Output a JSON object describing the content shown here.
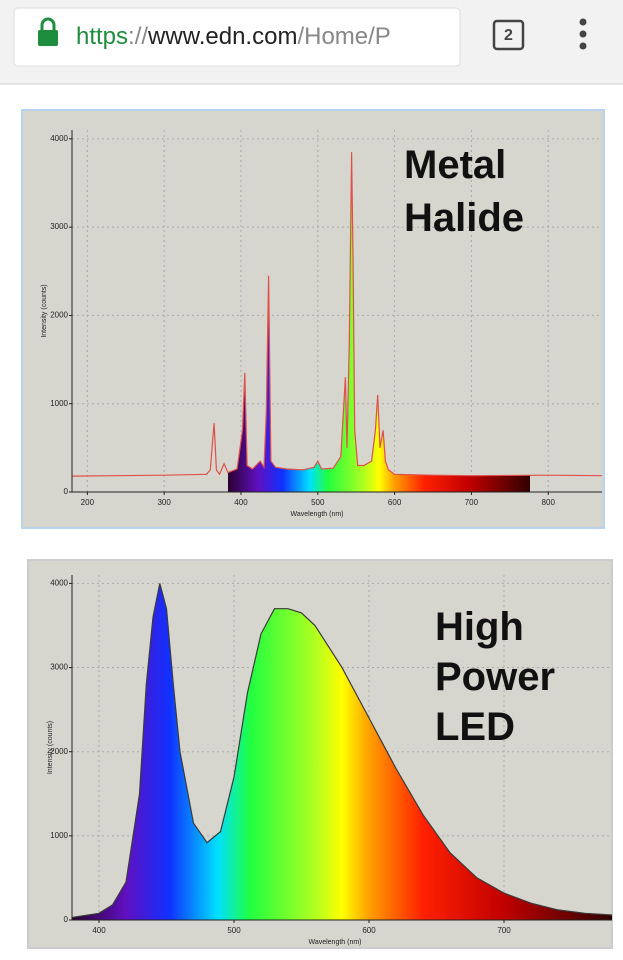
{
  "browser": {
    "url_parts": [
      "https",
      "://",
      "www.edn.com",
      "/Home/P"
    ],
    "tab_count": 2
  },
  "chart_data": [
    {
      "type": "area",
      "title_lines": [
        "Metal",
        "Halide"
      ],
      "x_label": "Wavelength (nm)",
      "y_label": "Intensity (counts)",
      "x": [
        180,
        300,
        355,
        360,
        365,
        368,
        372,
        378,
        383,
        395,
        402,
        405,
        408,
        415,
        425,
        430,
        433,
        436,
        439,
        445,
        460,
        480,
        495,
        500,
        505,
        520,
        530,
        536,
        538,
        541,
        544,
        546,
        548,
        552,
        560,
        570,
        575,
        578,
        581,
        585,
        588,
        592,
        600,
        650,
        700,
        800,
        870
      ],
      "values": [
        180,
        190,
        200,
        250,
        780,
        250,
        200,
        320,
        220,
        260,
        700,
        1350,
        300,
        260,
        350,
        280,
        900,
        2450,
        350,
        280,
        260,
        250,
        280,
        350,
        260,
        270,
        400,
        1300,
        500,
        1700,
        3850,
        2600,
        700,
        300,
        300,
        350,
        700,
        1100,
        500,
        700,
        350,
        250,
        200,
        190,
        185,
        190,
        185
      ],
      "xlim": [
        180,
        870
      ],
      "ylim": [
        0,
        4100
      ],
      "xticks": [
        200,
        300,
        400,
        500,
        600,
        700,
        800
      ],
      "yticks": [
        0,
        1000,
        2000,
        3000,
        4000
      ],
      "grid": true,
      "line_color": "#e0504a"
    },
    {
      "type": "area",
      "title_lines": [
        "High",
        "Power",
        "LED"
      ],
      "x_label": "Wavelength (nm)",
      "y_label": "Intensity (counts)",
      "x": [
        380,
        400,
        410,
        420,
        430,
        435,
        440,
        445,
        450,
        455,
        460,
        470,
        480,
        490,
        500,
        510,
        520,
        530,
        540,
        550,
        560,
        580,
        600,
        620,
        640,
        660,
        680,
        700,
        720,
        740,
        760,
        780
      ],
      "values": [
        30,
        80,
        180,
        450,
        1500,
        2800,
        3600,
        4000,
        3700,
        2800,
        2000,
        1150,
        920,
        1050,
        1700,
        2700,
        3400,
        3700,
        3700,
        3650,
        3500,
        3000,
        2400,
        1800,
        1250,
        800,
        500,
        320,
        200,
        120,
        80,
        60
      ],
      "xlim": [
        380,
        780
      ],
      "ylim": [
        0,
        4100
      ],
      "xticks": [
        400,
        500,
        600,
        700
      ],
      "yticks": [
        0,
        1000,
        2000,
        3000,
        4000
      ],
      "grid": true,
      "line_color": "#3a3a3a"
    }
  ]
}
